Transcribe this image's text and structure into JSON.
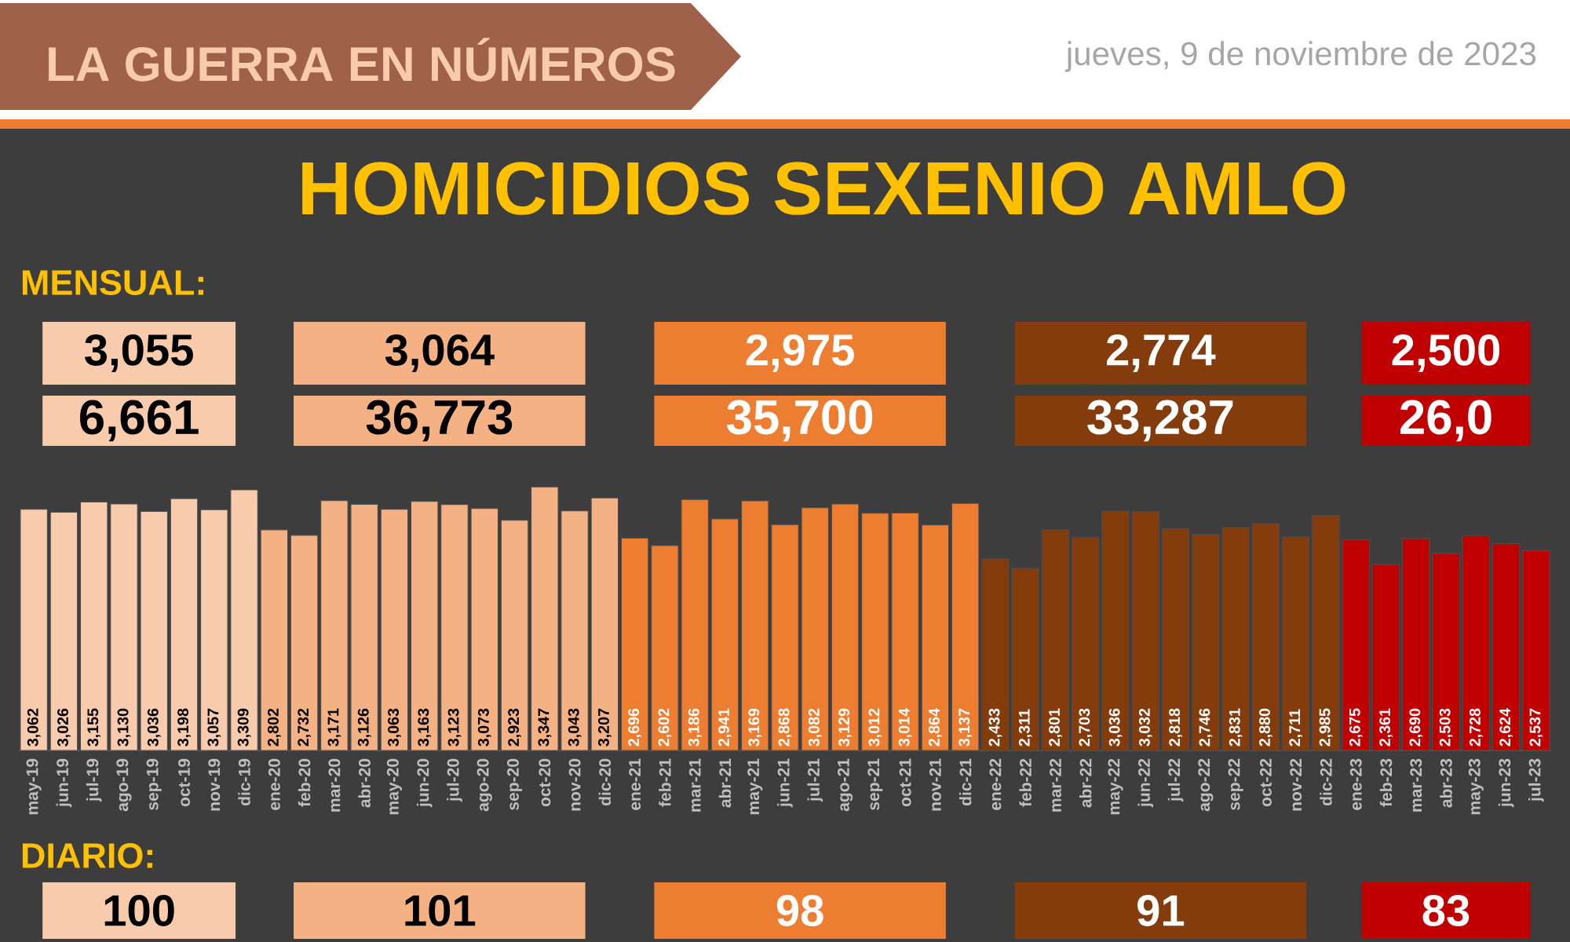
{
  "chart_data": {
    "type": "bar",
    "title": "HOMICIDIOS SEXENIO AMLO",
    "categories": [
      "may-19",
      "jun-19",
      "jul-19",
      "ago-19",
      "sep-19",
      "oct-19",
      "nov-19",
      "dic-19",
      "ene-20",
      "feb-20",
      "mar-20",
      "abr-20",
      "may-20",
      "jun-20",
      "jul-20",
      "ago-20",
      "sep-20",
      "oct-20",
      "nov-20",
      "dic-20",
      "ene-21",
      "feb-21",
      "mar-21",
      "abr-21",
      "may-21",
      "jun-21",
      "jul-21",
      "ago-21",
      "sep-21",
      "oct-21",
      "nov-21",
      "dic-21",
      "ene-22",
      "feb-22",
      "mar-22",
      "abr-22",
      "may-22",
      "jun-22",
      "jul-22",
      "ago-22",
      "sep-22",
      "oct-22",
      "nov-22",
      "dic-22",
      "ene-23",
      "feb-23",
      "mar-23",
      "abr-23",
      "may-23",
      "jun-23",
      "jul-23"
    ],
    "values": [
      3062,
      3026,
      3155,
      3130,
      3036,
      3198,
      3057,
      3309,
      2802,
      2732,
      3171,
      3126,
      3063,
      3163,
      3123,
      3073,
      2923,
      3347,
      3043,
      3207,
      2696,
      2602,
      3186,
      2941,
      3169,
      2868,
      3082,
      3129,
      3012,
      3014,
      2864,
      3137,
      2433,
      2311,
      2801,
      2703,
      3036,
      3032,
      2818,
      2746,
      2831,
      2880,
      2711,
      2985,
      2675,
      2361,
      2690,
      2503,
      2728,
      2624,
      2537
    ],
    "value_labels": [
      "3,062",
      "3,026",
      "3,155",
      "3,130",
      "3,036",
      "3,198",
      "3,057",
      "3,309",
      "2,802",
      "2,732",
      "3,171",
      "3,126",
      "3,063",
      "3,163",
      "3,123",
      "3,073",
      "2,923",
      "3,347",
      "3,043",
      "3,207",
      "2,696",
      "2,602",
      "3,186",
      "2,941",
      "3,169",
      "2,868",
      "3,082",
      "3,129",
      "3,012",
      "3,014",
      "2,864",
      "3,137",
      "2,433",
      "2,311",
      "2,801",
      "2,703",
      "3,036",
      "3,032",
      "2,818",
      "2,746",
      "2,831",
      "2,880",
      "2,711",
      "2,985",
      "2,675",
      "2,361",
      "2,690",
      "2,503",
      "2,728",
      "2,624",
      "2,537"
    ],
    "colors": [
      "#f8cbad",
      "#f8cbad",
      "#f8cbad",
      "#f8cbad",
      "#f8cbad",
      "#f8cbad",
      "#f8cbad",
      "#f8cbad",
      "#f4b183",
      "#f4b183",
      "#f4b183",
      "#f4b183",
      "#f4b183",
      "#f4b183",
      "#f4b183",
      "#f4b183",
      "#f4b183",
      "#f4b183",
      "#f4b183",
      "#f4b183",
      "#ed7d31",
      "#ed7d31",
      "#ed7d31",
      "#ed7d31",
      "#ed7d31",
      "#ed7d31",
      "#ed7d31",
      "#ed7d31",
      "#ed7d31",
      "#ed7d31",
      "#ed7d31",
      "#ed7d31",
      "#843c0c",
      "#843c0c",
      "#843c0c",
      "#843c0c",
      "#843c0c",
      "#843c0c",
      "#843c0c",
      "#843c0c",
      "#843c0c",
      "#843c0c",
      "#843c0c",
      "#843c0c",
      "#c00000",
      "#c00000",
      "#c00000",
      "#c00000",
      "#c00000",
      "#c00000",
      "#c00000"
    ],
    "tick_labels": "x",
    "annotations": [
      "LA GUERRA EN NÚMEROS",
      "jueves, 9 de noviembre de 2023",
      "MENSUAL:",
      "3,055",
      "3,064",
      "2,975",
      "2,774",
      "2,500",
      "6,661",
      "36,773",
      "35,700",
      "33,287",
      "26,0",
      "DIARIO:",
      "100",
      "101",
      "98",
      "91",
      "83"
    ]
  }
}
